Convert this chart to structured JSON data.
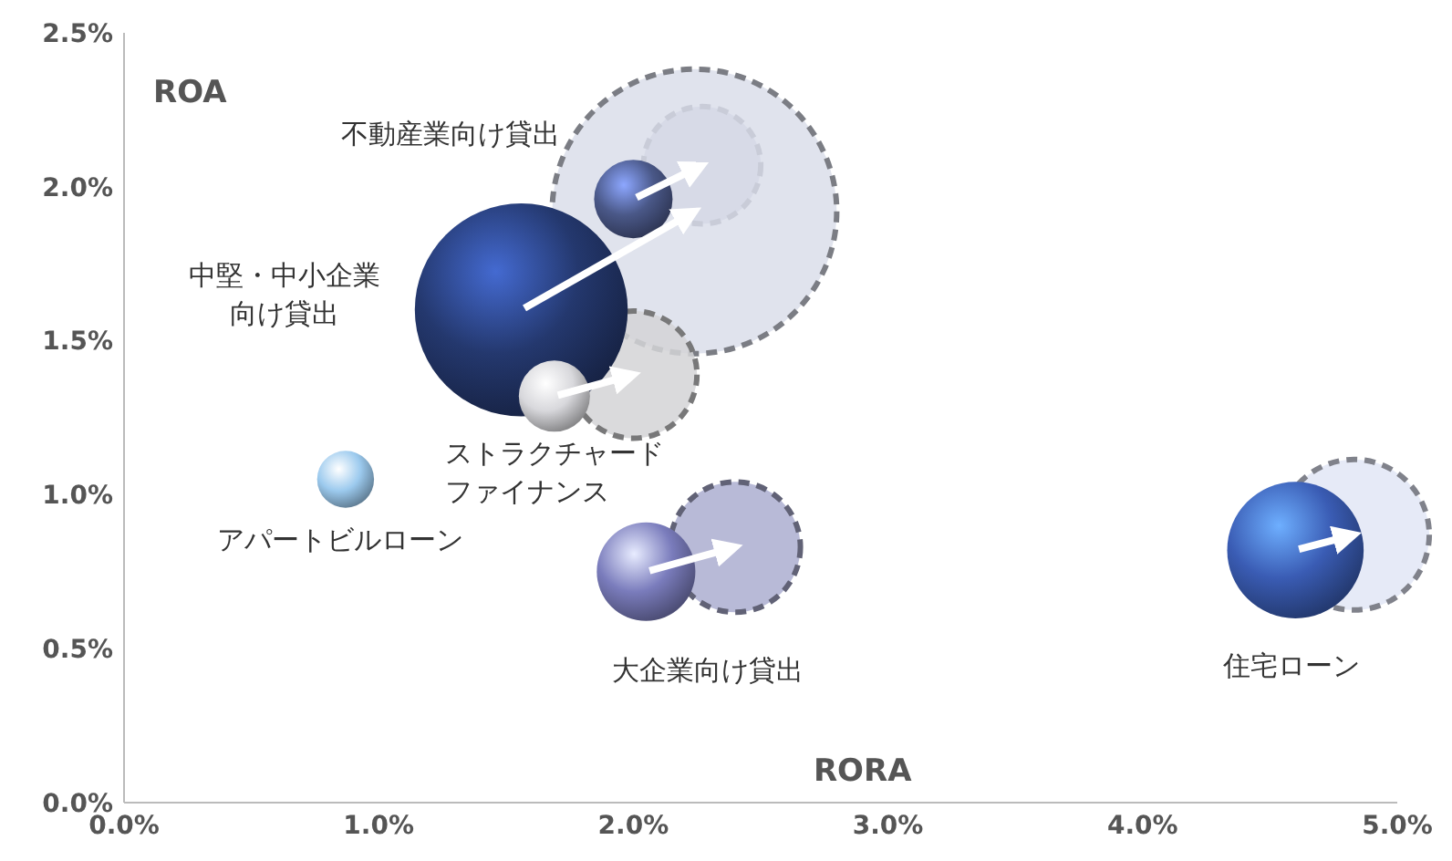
{
  "chart_data": {
    "type": "bubble",
    "xlabel": "RORA",
    "ylabel": "ROA",
    "xlim": [
      0,
      5
    ],
    "ylim": [
      0,
      2.5
    ],
    "xticks": [
      {
        "value": 0,
        "label": "0.0%"
      },
      {
        "value": 1,
        "label": "1.0%"
      },
      {
        "value": 2,
        "label": "2.0%"
      },
      {
        "value": 3,
        "label": "3.0%"
      },
      {
        "value": 4,
        "label": "4.0%"
      },
      {
        "value": 5,
        "label": "5.0%"
      }
    ],
    "yticks": [
      {
        "value": 0,
        "label": "0.0%"
      },
      {
        "value": 0.5,
        "label": "0.5%"
      },
      {
        "value": 1,
        "label": "1.0%"
      },
      {
        "value": 1.5,
        "label": "1.5%"
      },
      {
        "value": 2,
        "label": "2.0%"
      },
      {
        "value": 2.5,
        "label": "2.5%"
      }
    ],
    "grid": false,
    "annotations": [
      "不動産業向け貸出",
      "中堅・中小企業向け貸出",
      "ストラクチャードファイナンス",
      "アパートビルローン",
      "大企業向け貸出",
      "住宅ローン"
    ],
    "series": [
      {
        "line_style": "dashed",
        "x": [
          2.27,
          2.24,
          2.0,
          null,
          2.4,
          4.83
        ],
        "values": [
          2.07,
          1.92,
          1.39,
          null,
          0.83,
          0.87
        ],
        "sizes": [
          0.17,
          1,
          0.2,
          null,
          0.21,
          0.28
        ],
        "colors": [
          "#b4b8d0",
          "#dadeea",
          "#d4d4d6",
          null,
          "#acaed0",
          "#e2e6f6"
        ]
      },
      {
        "x": [
          2.0,
          1.56,
          1.69,
          0.87,
          2.05,
          4.6
        ],
        "values": [
          1.96,
          1.6,
          1.32,
          1.05,
          0.75,
          0.82
        ],
        "sizes": [
          0.076,
          0.56,
          0.0625,
          0.04,
          0.12,
          0.23
        ],
        "colors": [
          "#4a5888",
          "#24386e",
          "#d8d8dc",
          "#9ccaee",
          "#7a7cbc",
          "#3a5cb4"
        ]
      }
    ]
  }
}
